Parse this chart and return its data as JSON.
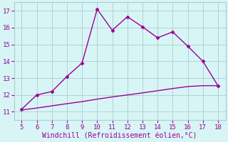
{
  "x_upper": [
    5,
    6,
    7,
    8,
    9,
    10,
    11,
    12,
    13,
    14,
    15,
    16,
    17,
    18
  ],
  "y_upper": [
    11.15,
    12.0,
    12.2,
    13.1,
    13.9,
    17.1,
    15.85,
    16.65,
    16.05,
    15.4,
    15.75,
    14.9,
    14.0,
    12.55
  ],
  "x_lower": [
    5,
    6,
    7,
    8,
    9,
    10,
    11,
    12,
    13,
    14,
    15,
    16,
    17,
    18
  ],
  "y_lower": [
    11.1,
    11.22,
    11.35,
    11.48,
    11.6,
    11.75,
    11.88,
    12.0,
    12.12,
    12.25,
    12.38,
    12.5,
    12.55,
    12.55
  ],
  "line_color": "#990099",
  "bg_color": "#d8f5f5",
  "grid_color": "#aacece",
  "xlabel": "Windchill (Refroidissement éolien,°C)",
  "xlim": [
    4.5,
    18.5
  ],
  "ylim": [
    10.5,
    17.5
  ],
  "xticks": [
    5,
    6,
    7,
    8,
    9,
    10,
    11,
    12,
    13,
    14,
    15,
    16,
    17,
    18
  ],
  "yticks": [
    11,
    12,
    13,
    14,
    15,
    16,
    17
  ],
  "tick_color": "#990099",
  "label_color": "#990099",
  "marker": "D",
  "markersize": 2.5,
  "linewidth": 1.0,
  "xlabel_fontsize": 7,
  "tick_fontsize": 6.5
}
